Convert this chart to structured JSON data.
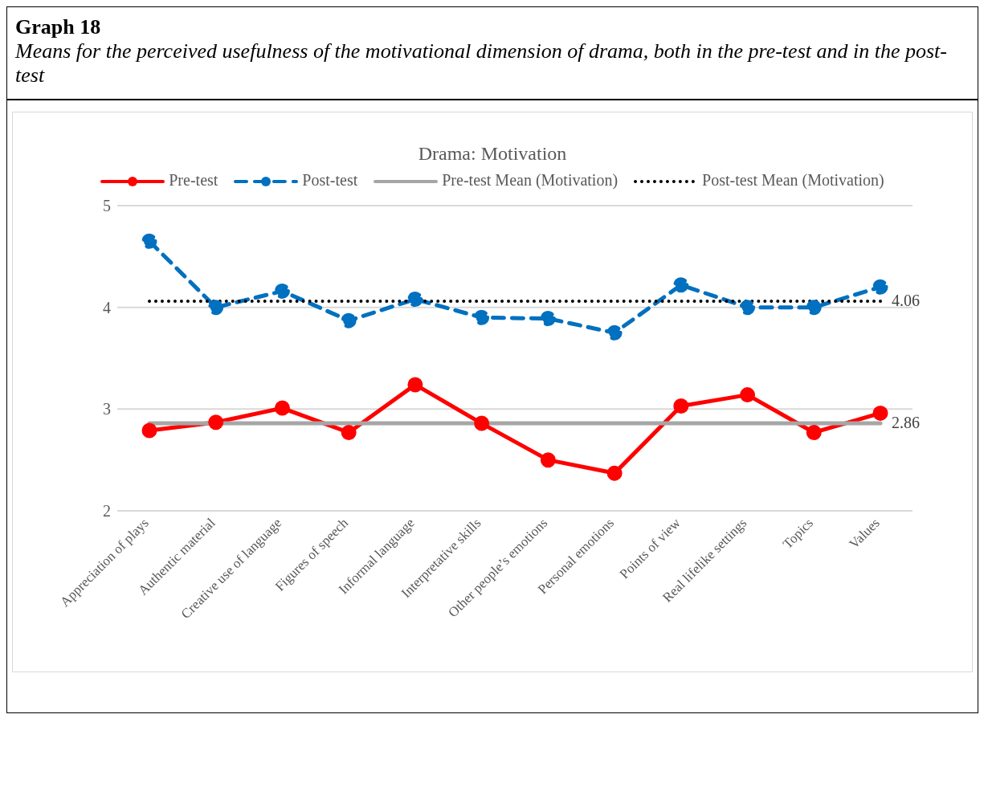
{
  "chart_data": {
    "type": "line",
    "title": "Drama: Motivation",
    "annotations": [
      "Graph 18",
      "Means for the perceived usefulness of the motivational dimension of drama, both in the pre-test and in the post-test"
    ],
    "categories": [
      "Appreciation of plays",
      "Authentic material",
      "Creative use of language",
      "Figures of speech",
      "Informal language",
      "Interpretative skills",
      "Other people’s emotions",
      "Personal emotions",
      "Points of view",
      "Real lifelike settings",
      "Topics",
      "Values"
    ],
    "series": [
      {
        "name": "Pre-test",
        "color": "#ff0000",
        "marker": "circle",
        "line_style": "solid",
        "values": [
          2.79,
          2.87,
          3.01,
          2.77,
          3.24,
          2.86,
          2.5,
          2.37,
          3.03,
          3.14,
          2.77,
          2.96
        ]
      },
      {
        "name": "Post-test",
        "color": "#0070c0",
        "marker": "circle",
        "line_style": "dashed",
        "values": [
          4.65,
          4.0,
          4.16,
          3.87,
          4.08,
          3.9,
          3.89,
          3.75,
          4.22,
          4.0,
          4.0,
          4.2
        ]
      },
      {
        "name": "Pre-test Mean (Motivation)",
        "color": "#a6a6a6",
        "marker": "none",
        "line_style": "solid",
        "values": [
          2.86,
          2.86,
          2.86,
          2.86,
          2.86,
          2.86,
          2.86,
          2.86,
          2.86,
          2.86,
          2.86,
          2.86
        ],
        "value_labels": [
          null,
          null,
          null,
          null,
          null,
          null,
          null,
          null,
          null,
          null,
          null,
          "2.86"
        ]
      },
      {
        "name": "Post-test Mean (Motivation)",
        "color": "#000000",
        "marker": "none",
        "line_style": "dotted",
        "values": [
          4.06,
          4.06,
          4.06,
          4.06,
          4.06,
          4.06,
          4.06,
          4.06,
          4.06,
          4.06,
          4.06,
          4.06
        ],
        "value_labels": [
          null,
          null,
          null,
          null,
          null,
          null,
          null,
          null,
          null,
          null,
          null,
          "4.06"
        ]
      }
    ],
    "ylim": [
      2,
      5
    ],
    "yticks": [
      2,
      3,
      4,
      5
    ],
    "grid": "y",
    "legend": "top"
  }
}
